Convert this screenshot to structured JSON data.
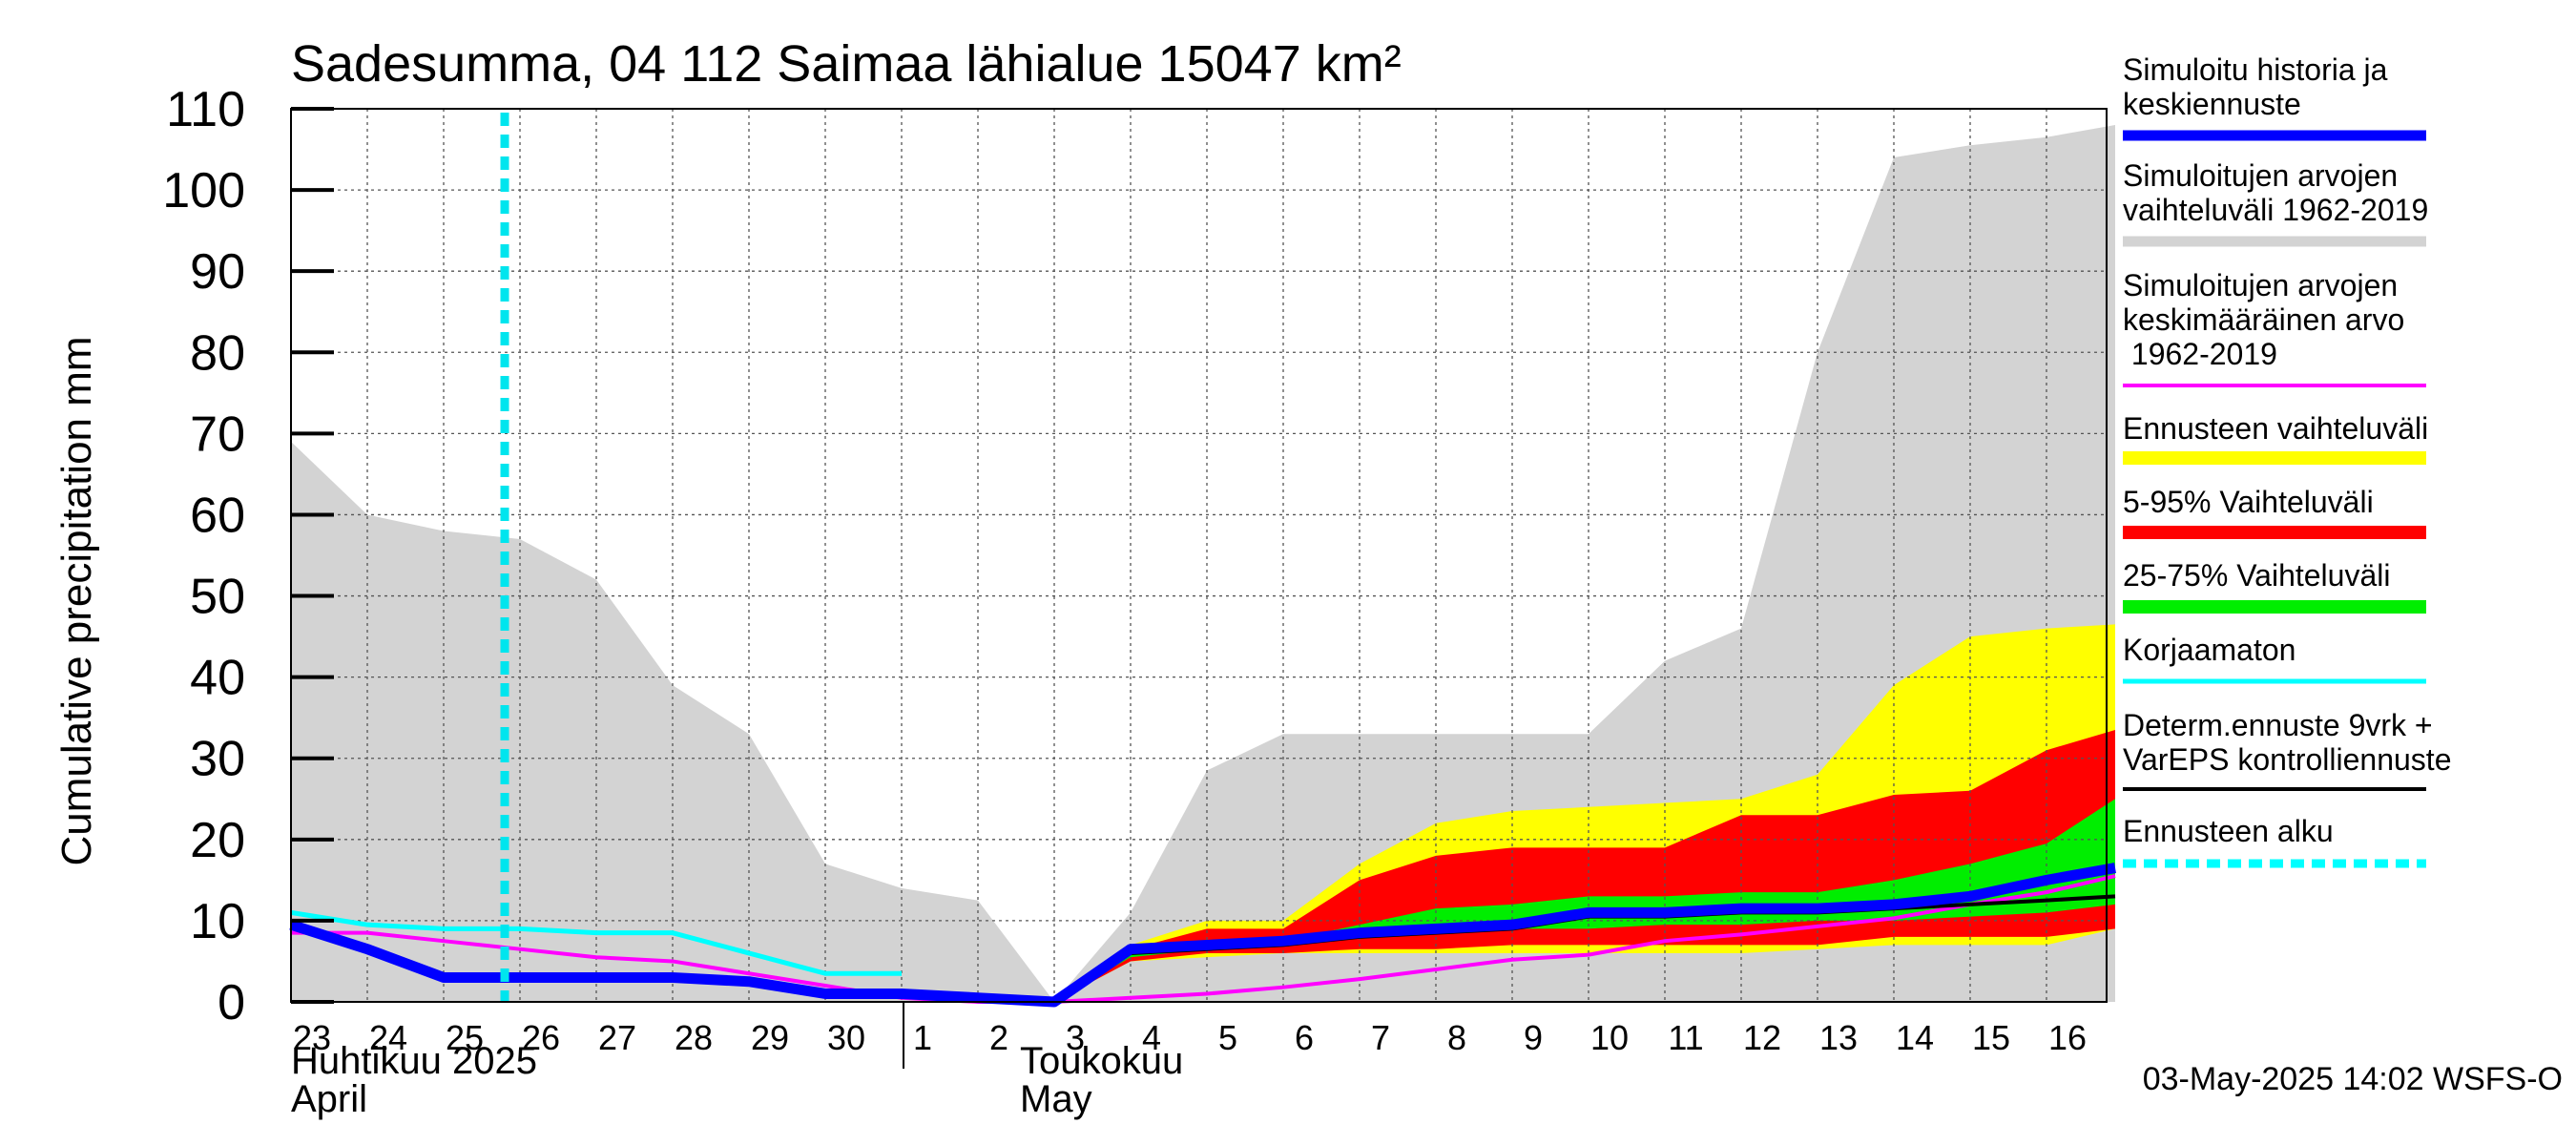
{
  "chart_data": {
    "type": "area",
    "title": "Sadesumma, 04 112 Saimaa lähialue 15047 km²",
    "ylabel": "Cumulative precipitation   mm",
    "ylim": [
      0,
      110
    ],
    "yticks": [
      0,
      10,
      20,
      30,
      40,
      50,
      60,
      70,
      80,
      90,
      100,
      110
    ],
    "x_day_labels": [
      "23",
      "24",
      "25",
      "26",
      "27",
      "28",
      "29",
      "30",
      "1",
      "2",
      "3",
      "4",
      "5",
      "6",
      "7",
      "8",
      "9",
      "10",
      "11",
      "12",
      "13",
      "14",
      "15",
      "16"
    ],
    "month_labels": [
      {
        "fi": "Huhtikuu  2025",
        "en": "April"
      },
      {
        "fi": "Toukokuu",
        "en": "May"
      }
    ],
    "grid": true,
    "legend_position": "right",
    "forecast_start_day": 2.8,
    "timestamp": "03-May-2025 14:02 WSFS-O",
    "series": [
      {
        "name": "Simuloitujen arvojen vaihteluväli 1962-2019",
        "kind": "band",
        "color": "#d3d3d3",
        "x": [
          0,
          1,
          2,
          3,
          4,
          5,
          6,
          7,
          8,
          9,
          10,
          11,
          12,
          13,
          14,
          15,
          16,
          17,
          18,
          19,
          20,
          21,
          22,
          23,
          23.9
        ],
        "upper": [
          69,
          60,
          58,
          57,
          52,
          39,
          33,
          17,
          14,
          12.5,
          0,
          11,
          28.5,
          33,
          33,
          33,
          33,
          33,
          42,
          46,
          80,
          104,
          105.5,
          106.5,
          108
        ],
        "lower": [
          0,
          0,
          0,
          0,
          0,
          0,
          0,
          0,
          0,
          0,
          0,
          0,
          0,
          0,
          0,
          0,
          0,
          0,
          0,
          0,
          0,
          0,
          0,
          0,
          0
        ]
      },
      {
        "name": "Ennusteen vaihteluväli",
        "kind": "band",
        "color": "#ffff00",
        "x": [
          10,
          11,
          12,
          13,
          14,
          15,
          16,
          17,
          18,
          19,
          20,
          21,
          22,
          23,
          23.9
        ],
        "upper": [
          0,
          7,
          10,
          10,
          17,
          22,
          23.5,
          24,
          24.5,
          25,
          28,
          39,
          45,
          46,
          46.5
        ],
        "lower": [
          0,
          5,
          5.5,
          6,
          6,
          6,
          6,
          6,
          6,
          6,
          6.5,
          7,
          7,
          7,
          9
        ]
      },
      {
        "name": "5-95% Vaihteluväli",
        "kind": "band",
        "color": "#ff0000",
        "x": [
          10,
          11,
          12,
          13,
          14,
          15,
          16,
          17,
          18,
          19,
          20,
          21,
          22,
          23,
          23.9
        ],
        "upper": [
          0,
          6.5,
          9,
          9,
          15,
          18,
          19,
          19,
          19,
          23,
          23,
          25.5,
          26,
          31,
          33.5
        ],
        "lower": [
          0,
          5,
          6,
          6,
          6.5,
          6.5,
          7,
          7,
          7,
          7,
          7,
          8,
          8,
          8,
          9
        ]
      },
      {
        "name": "25-75% Vaihteluväli",
        "kind": "band",
        "color": "#00ee00",
        "x": [
          10,
          11,
          12,
          13,
          14,
          15,
          16,
          17,
          18,
          19,
          20,
          21,
          22,
          23,
          23.9
        ],
        "upper": [
          0,
          6,
          7,
          7.5,
          9.5,
          11.5,
          12,
          13,
          13,
          13.5,
          13.5,
          15,
          17,
          19.5,
          25
        ],
        "lower": [
          0,
          5.5,
          6.5,
          7,
          8,
          8.5,
          9,
          9,
          9.5,
          9.5,
          10,
          10,
          10.5,
          11,
          12
        ]
      },
      {
        "name": "Korjaamaton",
        "kind": "line",
        "color": "#00ffff",
        "x": [
          0,
          1,
          2,
          3,
          4,
          5,
          6,
          7,
          8
        ],
        "values": [
          11,
          9.5,
          9,
          9,
          8.5,
          8.5,
          6,
          3.5,
          3.5
        ]
      },
      {
        "name": "Simuloitujen arvojen keskimääräinen arvo 1962-2019",
        "kind": "line",
        "color": "#ff00ff",
        "x": [
          0,
          1,
          2,
          3,
          4,
          5,
          6,
          7,
          8,
          9,
          10,
          11,
          12,
          13,
          14,
          15,
          16,
          17,
          18,
          19,
          20,
          21,
          22,
          23,
          23.9
        ],
        "values": [
          8.5,
          8.5,
          7.5,
          6.5,
          5.5,
          5,
          3.5,
          2,
          0.5,
          0,
          0,
          0.5,
          1,
          1.8,
          2.8,
          4,
          5.2,
          5.8,
          7.5,
          8.3,
          9.3,
          10.3,
          12,
          13.5,
          15.5
        ]
      },
      {
        "name": "Determ.ennuste 9vrk + VarEPS kontrolliennuste",
        "kind": "line",
        "color": "#000000",
        "x": [
          10,
          11,
          12,
          13,
          14,
          15,
          16,
          17,
          18,
          19,
          20,
          21,
          22,
          23,
          23.9
        ],
        "values": [
          0,
          6,
          6.5,
          7,
          8,
          8.5,
          9,
          10.5,
          10.5,
          11,
          11,
          11.5,
          12,
          12.5,
          13
        ]
      },
      {
        "name": "Simuloitu historia ja keskiennuste",
        "kind": "line",
        "color": "#0000ff",
        "x": [
          0,
          1,
          2,
          3,
          4,
          5,
          6,
          7,
          8,
          9,
          10,
          11,
          12,
          13,
          14,
          15,
          16,
          17,
          18,
          19,
          20,
          21,
          22,
          23,
          23.9
        ],
        "values": [
          9.5,
          6.5,
          3,
          3,
          3,
          3,
          2.5,
          1,
          1,
          0.5,
          0,
          6.5,
          7,
          7.5,
          8.5,
          9,
          9.5,
          11,
          11,
          11.5,
          11.5,
          12,
          13,
          15,
          16.5
        ]
      }
    ],
    "legend": [
      {
        "label": "Simuloitu historia ja keskiennuste",
        "color": "#0000ff",
        "style": "thick"
      },
      {
        "label": "Simuloitujen arvojen vaihteluväli 1962-2019",
        "color": "#d3d3d3",
        "style": "thick"
      },
      {
        "label": "Simuloitujen arvojen keskimääräinen arvo    1962-2019",
        "color": "#ff00ff",
        "style": "thin"
      },
      {
        "label": "Ennusteen vaihteluväli",
        "color": "#ffff00",
        "style": "thick"
      },
      {
        "label": "5-95% Vaihteluväli",
        "color": "#ff0000",
        "style": "thick"
      },
      {
        "label": "25-75% Vaihteluväli",
        "color": "#00ee00",
        "style": "thick"
      },
      {
        "label": "Korjaamaton",
        "color": "#00ffff",
        "style": "medium"
      },
      {
        "label": "Determ.ennuste 9vrk + VarEPS kontrolliennuste",
        "color": "#000000",
        "style": "thin"
      },
      {
        "label": "Ennusteen alku",
        "color": "#00ffff",
        "style": "dashed"
      }
    ]
  }
}
